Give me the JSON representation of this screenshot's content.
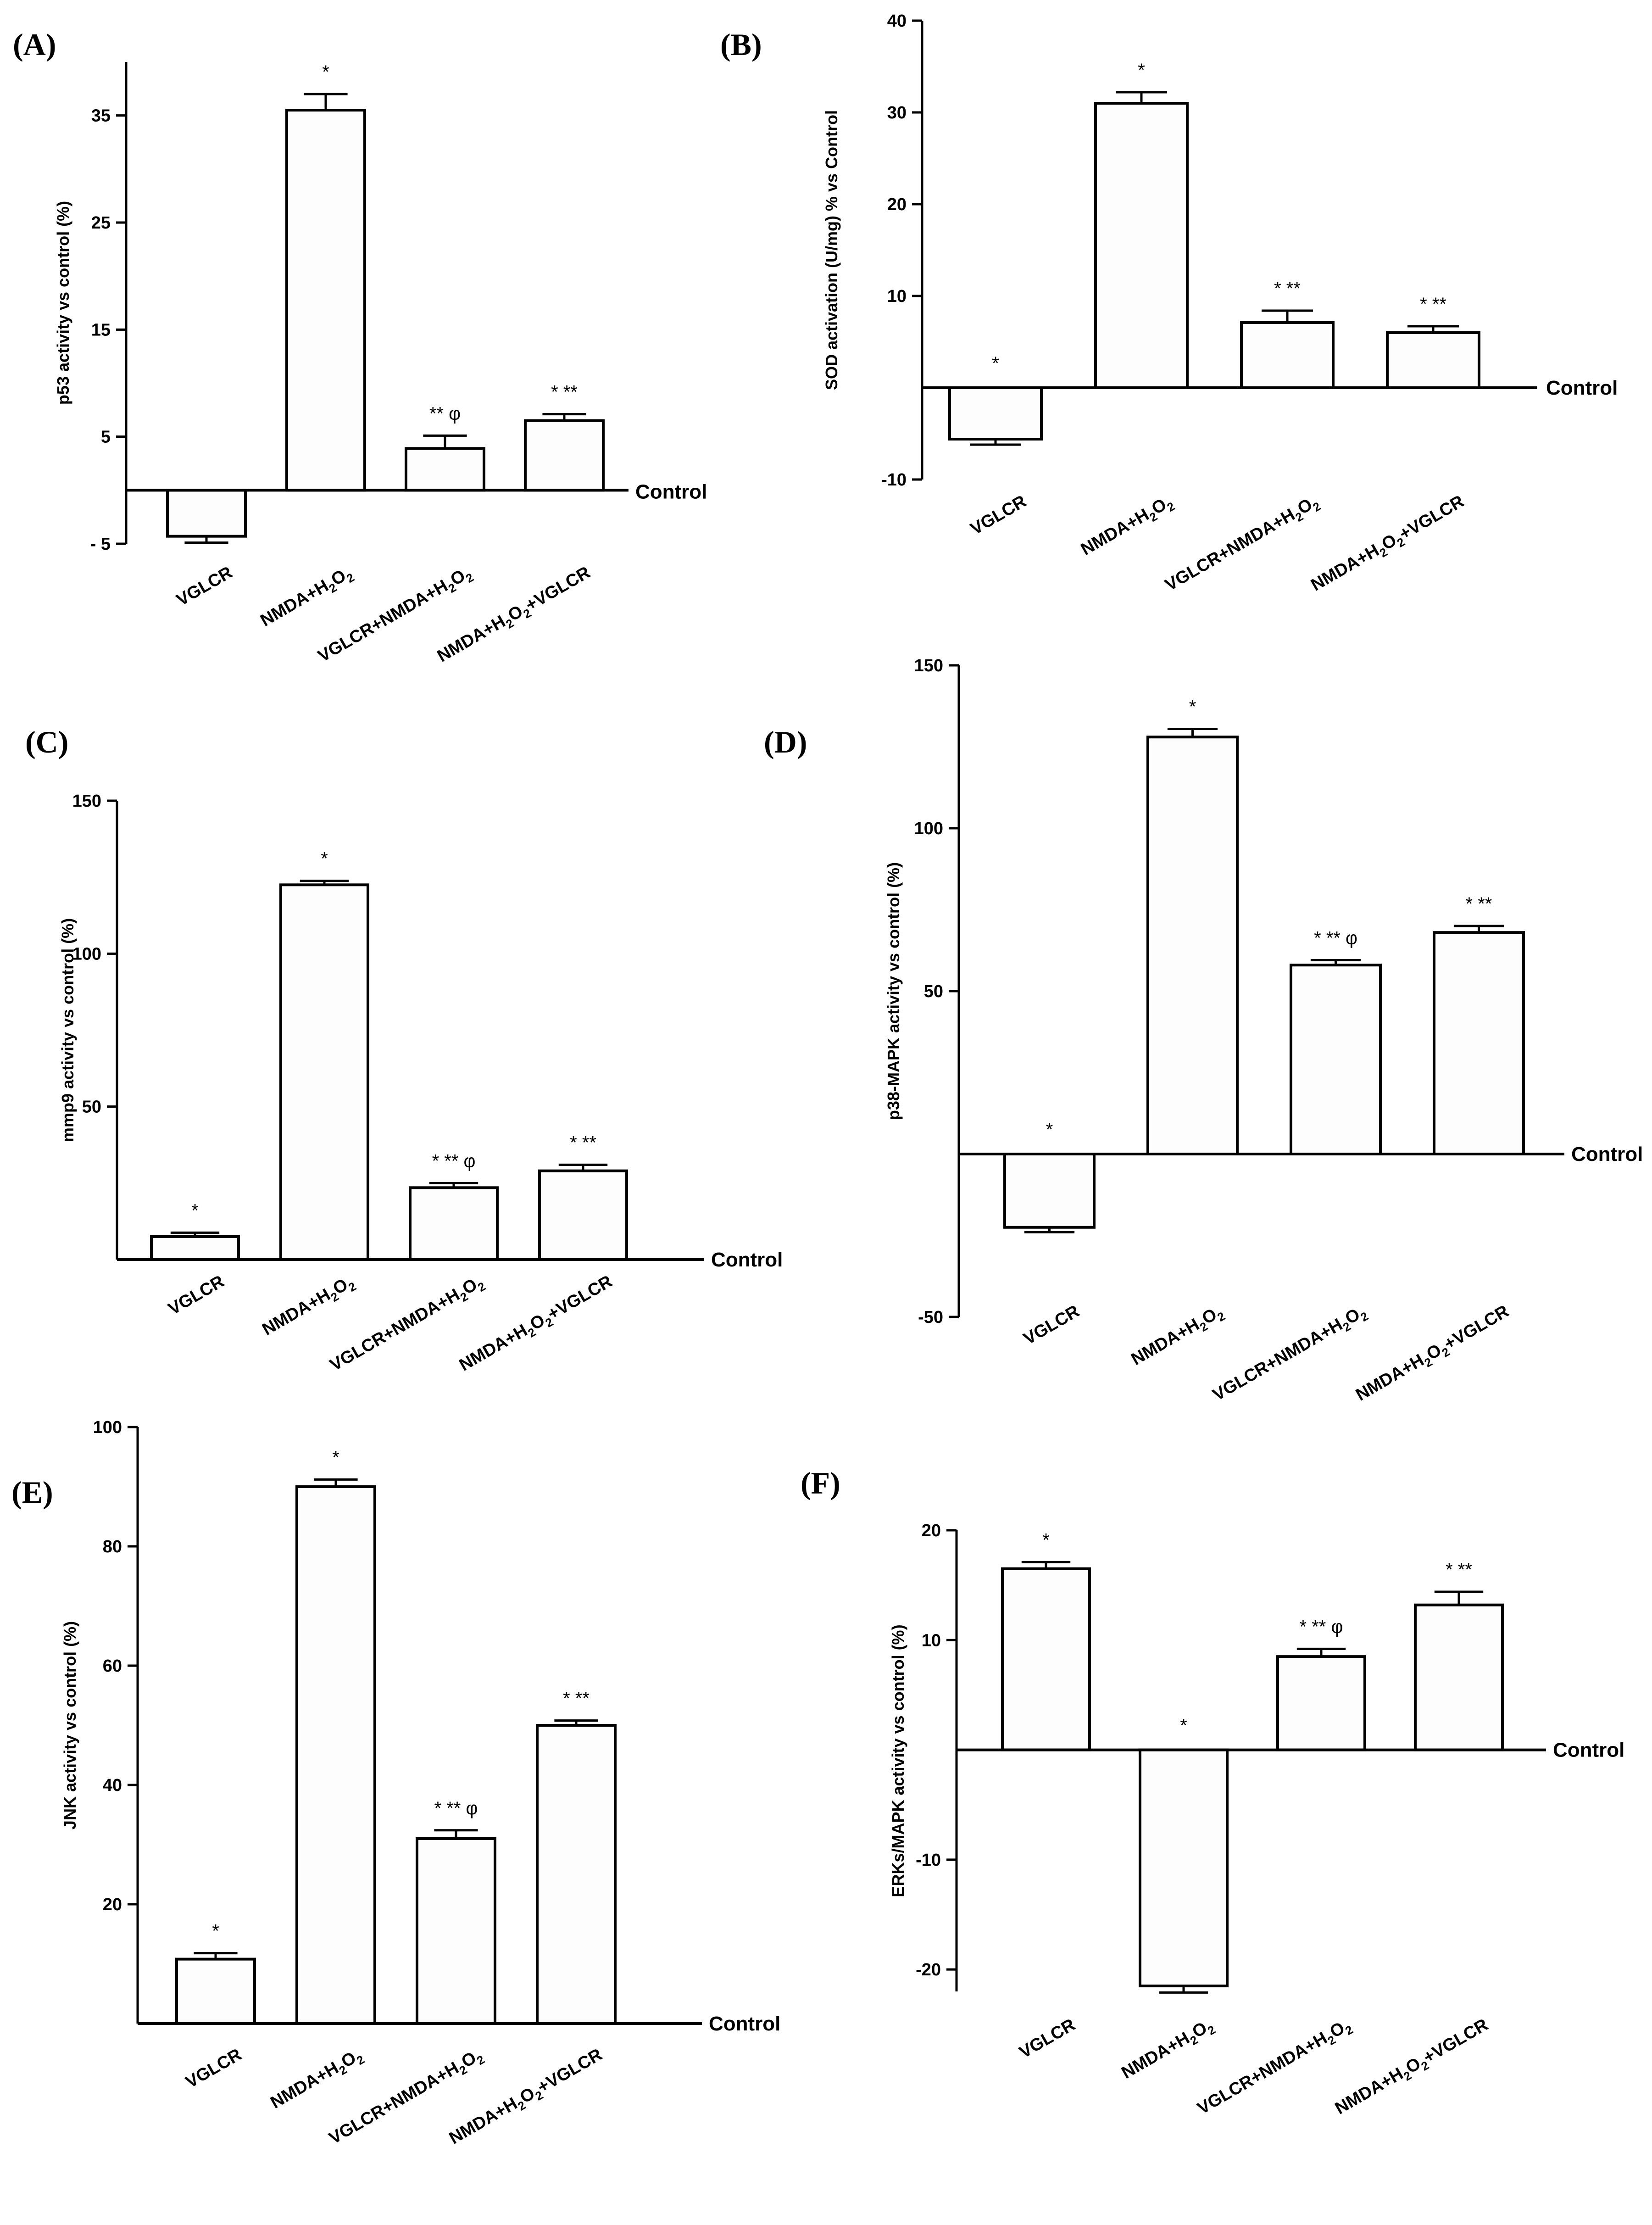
{
  "chart_data": [
    {
      "panel": "(A)",
      "type": "bar",
      "ylabel": "p53 activity vs control (%)",
      "baseline_label": "Control",
      "ylim": [
        -5,
        40
      ],
      "yticks": [
        -5,
        5,
        15,
        25,
        35
      ],
      "ytick_labels": [
        "- 5",
        "5",
        "15",
        "25",
        "35"
      ],
      "categories": [
        "VGLCR",
        "NMDA+H₂O₂",
        "VGLCR+NMDA+H₂O₂",
        "NMDA+H₂O₂+VGLCR"
      ],
      "values": [
        -4.3,
        35.5,
        3.9,
        6.5
      ],
      "errors": [
        0.6,
        1.5,
        1.2,
        0.6
      ],
      "annotations": [
        "",
        "*",
        "** φ",
        "* **"
      ]
    },
    {
      "panel": "(B)",
      "type": "bar",
      "ylabel": "SOD activation (U/mg) % vs Control",
      "baseline_label": "Control",
      "ylim": [
        -10,
        40
      ],
      "yticks": [
        -10,
        10,
        20,
        30,
        40
      ],
      "ytick_labels": [
        "-10",
        "10",
        "20",
        "30",
        "40"
      ],
      "categories": [
        "VGLCR",
        "NMDA+H₂O₂",
        "VGLCR+NMDA+H₂O₂",
        "NMDA+H₂O₂+VGLCR"
      ],
      "values": [
        -5.6,
        31.0,
        7.1,
        6.0
      ],
      "errors": [
        0.6,
        1.2,
        1.3,
        0.7
      ],
      "annotations": [
        "*",
        "*",
        "* **",
        "* **"
      ]
    },
    {
      "panel": "(C)",
      "type": "bar",
      "ylabel": "mmp9 activity vs control (%)",
      "baseline_label": "Control",
      "ylim": [
        0,
        150
      ],
      "yticks": [
        50,
        100,
        150
      ],
      "ytick_labels": [
        "50",
        "100",
        "150"
      ],
      "categories": [
        "VGLCR",
        "NMDA+H₂O₂",
        "VGLCR+NMDA+H₂O₂",
        "NMDA+H₂O₂+VGLCR"
      ],
      "values": [
        7.5,
        122.5,
        23.5,
        29.0
      ],
      "errors": [
        1.3,
        1.3,
        1.5,
        2.0
      ],
      "annotations": [
        "*",
        "*",
        "* ** φ",
        "* **"
      ]
    },
    {
      "panel": "(D)",
      "type": "bar",
      "ylabel": "p38-MAPK activity vs control (%)",
      "baseline_label": "Control",
      "ylim": [
        -50,
        150
      ],
      "yticks": [
        -50,
        50,
        100,
        150
      ],
      "ytick_labels": [
        "-50",
        "50",
        "100",
        "150"
      ],
      "categories": [
        "VGLCR",
        "NMDA+H₂O₂",
        "VGLCR+NMDA+H₂O₂",
        "NMDA+H₂O₂+VGLCR"
      ],
      "values": [
        -22.5,
        128.0,
        58.0,
        68.0
      ],
      "errors": [
        1.5,
        2.5,
        1.5,
        2.0
      ],
      "annotations": [
        "*",
        "*",
        "* ** φ",
        "* **"
      ]
    },
    {
      "panel": "(E)",
      "type": "bar",
      "ylabel": "JNK  activity vs control (%)",
      "baseline_label": "Control",
      "ylim": [
        0,
        100
      ],
      "yticks": [
        20,
        40,
        60,
        80,
        100
      ],
      "ytick_labels": [
        "20",
        "40",
        "60",
        "80",
        "100"
      ],
      "categories": [
        "VGLCR",
        "NMDA+H₂O₂",
        "VGLCR+NMDA+H₂O₂",
        "NMDA+H₂O₂+VGLCR"
      ],
      "values": [
        10.8,
        90.0,
        31.0,
        50.0
      ],
      "errors": [
        1.0,
        1.2,
        1.4,
        0.8
      ],
      "annotations": [
        "*",
        "*",
        "* ** φ",
        "* **"
      ]
    },
    {
      "panel": "(F)",
      "type": "bar",
      "ylabel": "ERKs/MAPK activity vs control (%)",
      "baseline_label": "Control",
      "ylim": [
        -22,
        20
      ],
      "yticks": [
        -20,
        -10,
        10,
        20
      ],
      "ytick_labels": [
        "-20",
        "-10",
        "10",
        "20"
      ],
      "categories": [
        "VGLCR",
        "NMDA+H₂O₂",
        "VGLCR+NMDA+H₂O₂",
        "NMDA+H₂O₂+VGLCR"
      ],
      "values": [
        16.5,
        -21.5,
        8.5,
        13.2
      ],
      "errors": [
        0.6,
        0.6,
        0.7,
        1.2
      ],
      "annotations": [
        "*",
        "*",
        "* ** φ",
        "* **"
      ]
    }
  ]
}
